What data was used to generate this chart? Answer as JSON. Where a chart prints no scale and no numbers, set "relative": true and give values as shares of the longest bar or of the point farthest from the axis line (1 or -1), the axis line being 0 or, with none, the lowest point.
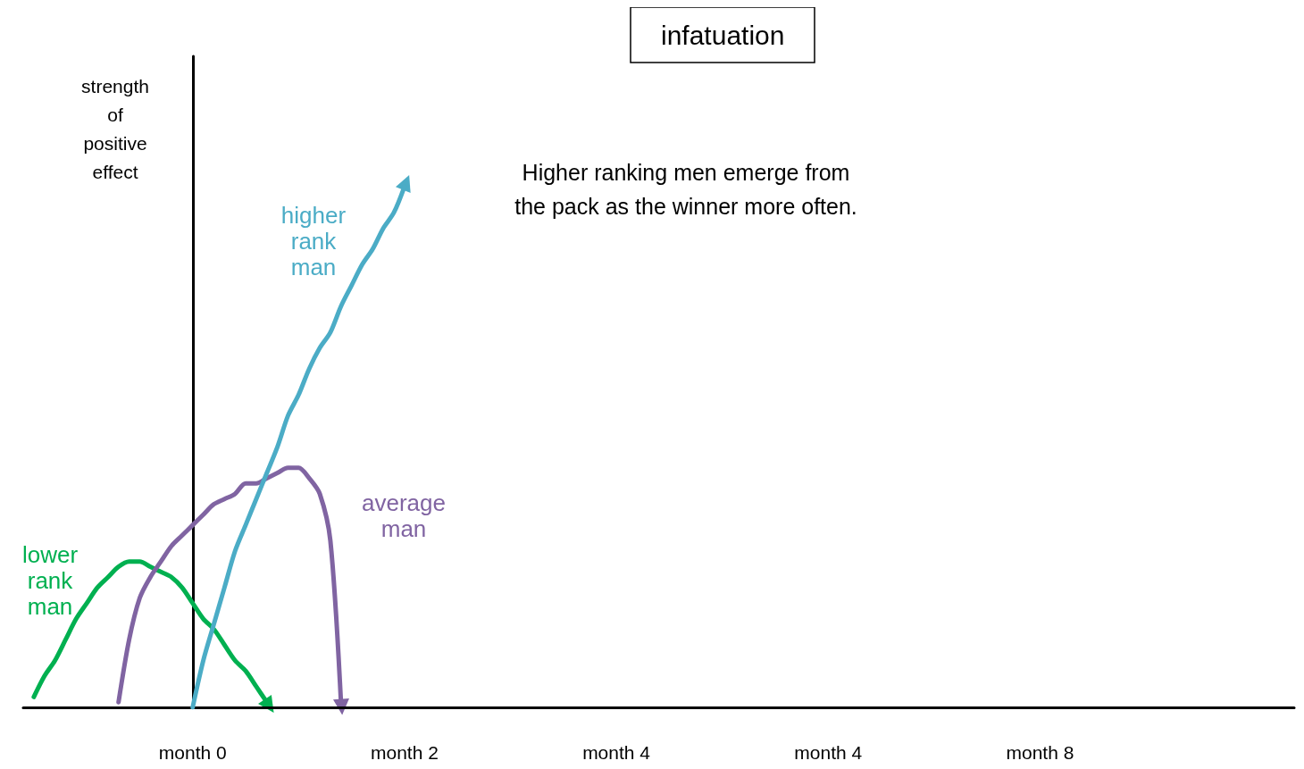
{
  "chart_data": {
    "type": "line",
    "title": "infatuation",
    "ylabel": "strength\nof\npositive\neffect",
    "relative": true,
    "marker": "none",
    "grid": false,
    "legend": false,
    "categories": [
      null,
      null,
      null,
      null,
      null,
      null,
      null,
      null,
      null,
      null,
      null,
      null,
      null,
      null,
      null,
      null,
      "month 0",
      null,
      null,
      null,
      null,
      null,
      null,
      null,
      null,
      null,
      null,
      null,
      null,
      null,
      null,
      null,
      null,
      null,
      null,
      null,
      "month 2",
      null,
      null,
      null,
      null,
      null,
      null,
      null,
      null,
      null,
      null,
      null,
      null,
      null,
      null,
      null,
      null,
      null,
      null,
      null,
      "month 4",
      null,
      null,
      null,
      null,
      null,
      null,
      null,
      null,
      null,
      null,
      null,
      null,
      null,
      null,
      null,
      null,
      null,
      null,
      null,
      "month 4",
      null,
      null,
      null,
      null,
      null,
      null,
      null,
      null,
      null,
      null,
      null,
      null,
      null,
      null,
      null,
      null,
      null,
      null,
      null,
      "month 8",
      null,
      null,
      null,
      null,
      null,
      null,
      null,
      null,
      null,
      null,
      null,
      null,
      null,
      null,
      null,
      null,
      null,
      null,
      null,
      null,
      null,
      null,
      null,
      null
    ],
    "annotations": [
      "Higher ranking men emerge from\nthe pack as the winner more often."
    ],
    "series": [
      {
        "name": "lower\nrank\nman",
        "color": "#00b050",
        "values": [
          null,
          0.02,
          0.06,
          0.09,
          0.13,
          0.17,
          0.2,
          0.23,
          0.25,
          0.27,
          0.28,
          0.28,
          0.27,
          0.26,
          0.25,
          0.23,
          0.2,
          0.17,
          0.15,
          0.12,
          0.09,
          0.07,
          0.04,
          0.01,
          null,
          null,
          null,
          null,
          null,
          null,
          null,
          null,
          null,
          null,
          null,
          null,
          null,
          null,
          null,
          null,
          null,
          null,
          null,
          null,
          null,
          null,
          null,
          null,
          null,
          null,
          null,
          null,
          null,
          null,
          null,
          null,
          null,
          null,
          null,
          null,
          null,
          null,
          null,
          null,
          null,
          null,
          null,
          null,
          null,
          null,
          null,
          null,
          null,
          null,
          null,
          null,
          null,
          null,
          null,
          null,
          null,
          null,
          null,
          null,
          null,
          null,
          null,
          null,
          null,
          null,
          null,
          null,
          null,
          null,
          null,
          null,
          null,
          null,
          null,
          null,
          null,
          null,
          null,
          null,
          null,
          null,
          null,
          null,
          null,
          null,
          null,
          null,
          null,
          null,
          null,
          null,
          null,
          null,
          null,
          null,
          null
        ]
      },
      {
        "name": "average\nman",
        "color": "#8064a2",
        "values": [
          null,
          null,
          null,
          null,
          null,
          null,
          null,
          null,
          null,
          0.01,
          0.13,
          0.21,
          0.25,
          0.28,
          0.31,
          0.33,
          0.35,
          0.37,
          0.39,
          0.4,
          0.41,
          0.43,
          0.43,
          0.44,
          0.45,
          0.46,
          0.46,
          0.44,
          0.41,
          0.32,
          0.01,
          null,
          null,
          null,
          null,
          null,
          null,
          null,
          null,
          null,
          null,
          null,
          null,
          null,
          null,
          null,
          null,
          null,
          null,
          null,
          null,
          null,
          null,
          null,
          null,
          null,
          null,
          null,
          null,
          null,
          null,
          null,
          null,
          null,
          null,
          null,
          null,
          null,
          null,
          null,
          null,
          null,
          null,
          null,
          null,
          null,
          null,
          null,
          null,
          null,
          null,
          null,
          null,
          null,
          null,
          null,
          null,
          null,
          null,
          null,
          null,
          null,
          null,
          null,
          null,
          null,
          null,
          null,
          null,
          null,
          null,
          null,
          null,
          null,
          null,
          null,
          null,
          null,
          null,
          null,
          null,
          null,
          null,
          null,
          null,
          null,
          null,
          null,
          null,
          null,
          null
        ]
      },
      {
        "name": "higher\nrank\nman",
        "color": "#4bacc6",
        "values": [
          null,
          null,
          null,
          null,
          null,
          null,
          null,
          null,
          null,
          null,
          null,
          null,
          null,
          null,
          null,
          null,
          0,
          0.09,
          0.16,
          0.23,
          0.3,
          0.35,
          0.4,
          0.45,
          0.5,
          0.56,
          0.6,
          0.65,
          0.69,
          0.72,
          0.77,
          0.81,
          0.85,
          0.88,
          0.92,
          0.95,
          1,
          null,
          null,
          null,
          null,
          null,
          null,
          null,
          null,
          null,
          null,
          null,
          null,
          null,
          null,
          null,
          null,
          null,
          null,
          null,
          null,
          null,
          null,
          null,
          null,
          null,
          null,
          null,
          null,
          null,
          null,
          null,
          null,
          null,
          null,
          null,
          null,
          null,
          null,
          null,
          null,
          null,
          null,
          null,
          null,
          null,
          null,
          null,
          null,
          null,
          null,
          null,
          null,
          null,
          null,
          null,
          null,
          null,
          null,
          null,
          null,
          null,
          null,
          null,
          null,
          null,
          null,
          null,
          null,
          null,
          null,
          null,
          null,
          null,
          null,
          null,
          null,
          null,
          null,
          null,
          null,
          null,
          null,
          null,
          null
        ]
      }
    ]
  }
}
